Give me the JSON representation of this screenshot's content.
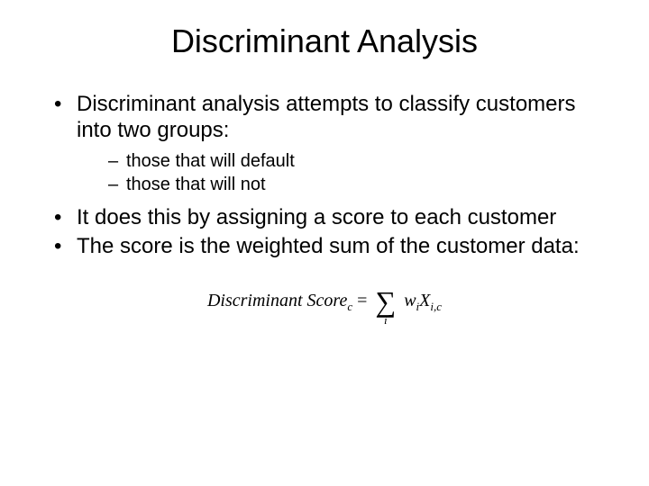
{
  "title": "Discriminant Analysis",
  "bullets": [
    {
      "text": "Discriminant analysis attempts to classify customers into two groups:",
      "sub": [
        "those that will default",
        "those that will not"
      ]
    },
    {
      "text": "It does this by assigning a score to each customer",
      "sub": []
    },
    {
      "text": "The score is the weighted sum of the customer data:",
      "sub": []
    }
  ],
  "formula": {
    "lhs_label": "Discriminant Score",
    "lhs_sub": "c",
    "equals": " = ",
    "sum_index": "i",
    "var_w": "w",
    "var_w_sub": "i",
    "var_X": "X",
    "var_X_sub": "i,c"
  },
  "colors": {
    "background": "#ffffff",
    "text": "#000000"
  },
  "fonts": {
    "body": "Arial",
    "formula": "Times New Roman",
    "title_size": 36,
    "bullet_size": 24,
    "sub_size": 20,
    "formula_size": 20
  }
}
